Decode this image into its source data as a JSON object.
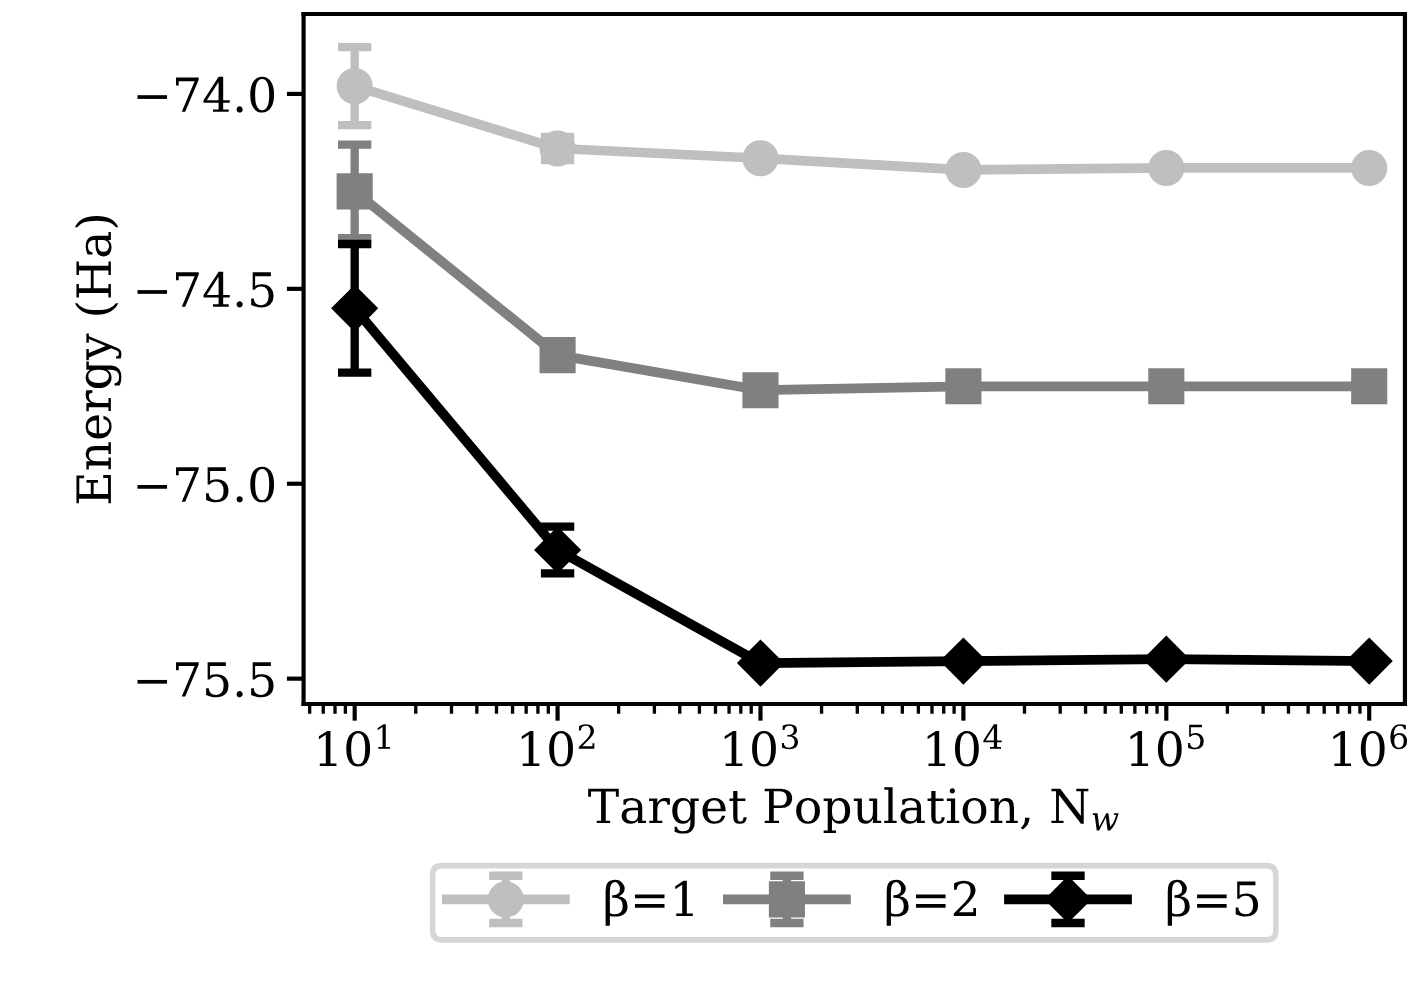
{
  "chart_data": {
    "type": "line",
    "xlabel": "Target Population, N$_{w}$",
    "ylabel": "Energy (Ha)",
    "log": "x",
    "x": [
      10,
      100,
      1000,
      10000,
      100000,
      1000000
    ],
    "series": [
      {
        "name": "β=1",
        "color": "#bfbfbf",
        "marker": "circle",
        "values": [
          -73.98,
          -74.14,
          -74.165,
          -74.195,
          -74.19,
          -74.19
        ],
        "errors": [
          0.1,
          0.03,
          null,
          null,
          null,
          null
        ]
      },
      {
        "name": "β=2",
        "color": "#808080",
        "marker": "square",
        "values": [
          -74.25,
          -74.67,
          -74.76,
          -74.75,
          -74.75,
          -74.75
        ],
        "errors": [
          0.12,
          0.03,
          null,
          null,
          null,
          null
        ]
      },
      {
        "name": "β=5",
        "color": "#000000",
        "marker": "diamond",
        "values": [
          -74.55,
          -75.17,
          -75.46,
          -75.455,
          -75.45,
          -75.455
        ],
        "errors": [
          0.165,
          0.06,
          null,
          null,
          null,
          null
        ]
      }
    ],
    "xlim": [
      5.6,
      1500000
    ],
    "xticks": [
      {
        "value": 10,
        "label": "10$^{1}$"
      },
      {
        "value": 100,
        "label": "10$^{2}$"
      },
      {
        "value": 1000,
        "label": "10$^{3}$"
      },
      {
        "value": 10000,
        "label": "10$^{4}$"
      },
      {
        "value": 100000,
        "label": "10$^{5}$"
      },
      {
        "value": 1000000,
        "label": "10$^{6}$"
      }
    ],
    "ylim": [
      -75.565,
      -73.795
    ],
    "yticks": [
      {
        "value": -75.5,
        "label": "−75.5"
      },
      {
        "value": -75.0,
        "label": "−75.0"
      },
      {
        "value": -74.5,
        "label": "−74.5"
      },
      {
        "value": -74.0,
        "label": "−74.0"
      }
    ],
    "grid": false,
    "legend": "bottom"
  }
}
